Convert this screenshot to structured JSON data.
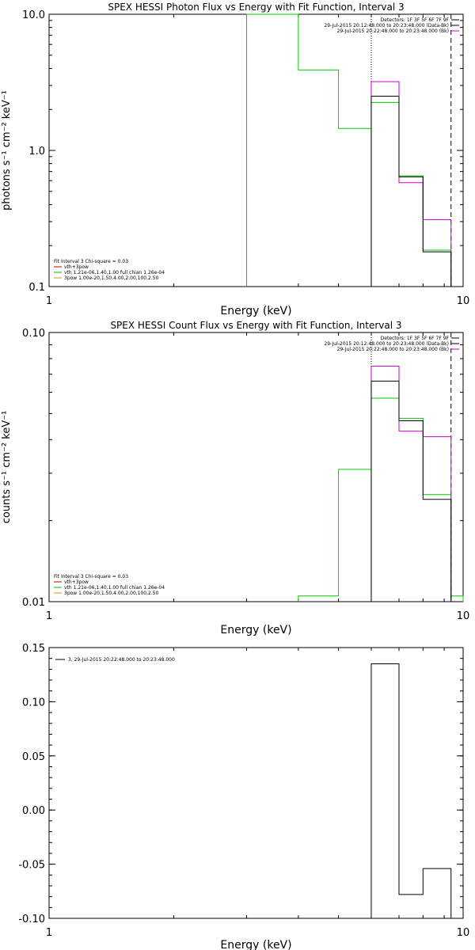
{
  "chart_data": [
    {
      "type": "line",
      "title": "SPEX HESSI Photon Flux vs Energy with Fit Function, Interval 3",
      "xlabel": "Energy (keV)",
      "ylabel": "photons s⁻¹ cm⁻² keV⁻¹",
      "xscale": "log",
      "yscale": "log",
      "xlim": [
        1,
        10
      ],
      "ylim": [
        0.1,
        10.0
      ],
      "xticks": [
        {
          "v": 1,
          "label": "1"
        },
        {
          "v": 10,
          "label": "10"
        }
      ],
      "yticks": [
        {
          "v": 0.1,
          "label": "0.1"
        },
        {
          "v": 1.0,
          "label": "1.0"
        },
        {
          "v": 10.0,
          "label": "10.0"
        }
      ],
      "info_top": [
        "Detectors: 1F 3F 5F 6F 7F 9F",
        "29-Jul-2015 20:12:48.000 to 20:23:48.000 (Data-Bk)",
        "29-Jul-2015 20:22:48.000 to 20:23:48.000 (Bk)"
      ],
      "info_top_colors": [
        "#000000",
        "#000000",
        "#c000c0"
      ],
      "info_bottom": [
        "Fit Interval 3   Chi-square = 0.03",
        "vth+3pow",
        "vth 1.21e-06,1.40,1.00  full chian 1.26e-04",
        "3pow 1.00e-20,1.50,4.00,2.00,100,2.50"
      ],
      "info_bottom_colors": [
        "#000000",
        "#c00000",
        "#00c000",
        "#c0a000"
      ],
      "vlines": [
        {
          "x": 6.0,
          "style": "dotted"
        },
        {
          "x": 9.35,
          "style": "dashed"
        }
      ],
      "series": [
        {
          "color": "#00cc00",
          "edges": [
            3.0,
            4.0,
            5.0,
            6.0,
            7.0,
            8.0,
            9.35
          ],
          "values": [
            10.0,
            3.9,
            1.45,
            2.25,
            0.65,
            0.185
          ]
        },
        {
          "color": "#cc00cc",
          "edges": [
            6.0,
            7.0,
            8.0,
            9.35
          ],
          "values": [
            3.2,
            0.58,
            0.31
          ]
        },
        {
          "color": "#000000",
          "edges": [
            6.0,
            7.0,
            8.0,
            9.35
          ],
          "values": [
            2.5,
            0.64,
            0.18
          ]
        }
      ]
    },
    {
      "type": "line",
      "title": "SPEX HESSI Count Flux vs Energy with Fit Function, Interval 3",
      "xlabel": "Energy (keV)",
      "ylabel": "counts s⁻¹ cm⁻² keV⁻¹",
      "xscale": "log",
      "yscale": "log",
      "xlim": [
        1,
        10
      ],
      "ylim": [
        0.01,
        0.1
      ],
      "xticks": [
        {
          "v": 1,
          "label": "1"
        },
        {
          "v": 10,
          "label": "10"
        }
      ],
      "yticks": [
        {
          "v": 0.01,
          "label": "0.01"
        },
        {
          "v": 0.1,
          "label": "0.10"
        }
      ],
      "info_top": [
        "Detectors: 1F 3F 5F 6F 7F 9F",
        "29-Jul-2015 20:12:48.000 to 20:23:48.000 (Data-Bk)",
        "29-Jul-2015 20:22:48.000 to 20:23:48.000 (Bk)"
      ],
      "info_top_colors": [
        "#000000",
        "#000000",
        "#c000c0"
      ],
      "info_bottom": [
        "Fit Interval 3   Chi-square = 0.03",
        "vth+3pow",
        "vth 1.21e-06,1.40,1.00  full chian 1.26e-04",
        "3pow 1.00e-20,1.50,4.00,2.00,100,2.50"
      ],
      "info_bottom_colors": [
        "#000000",
        "#c00000",
        "#00c000",
        "#c0a000"
      ],
      "vlines": [
        {
          "x": 6.0,
          "style": "dotted"
        },
        {
          "x": 9.35,
          "style": "dashed"
        }
      ],
      "series": [
        {
          "color": "#00cc00",
          "edges": [
            4.0,
            5.0,
            6.0,
            7.0,
            8.0,
            9.35,
            10.0
          ],
          "values": [
            0.0105,
            0.031,
            0.057,
            0.048,
            0.025,
            0.0105
          ]
        },
        {
          "color": "#cc00cc",
          "edges": [
            6.0,
            7.0,
            8.0,
            9.35
          ],
          "values": [
            0.075,
            0.043,
            0.041
          ]
        },
        {
          "color": "#000000",
          "edges": [
            6.0,
            7.0,
            8.0,
            9.35
          ],
          "values": [
            0.066,
            0.047,
            0.024
          ]
        }
      ]
    },
    {
      "type": "line",
      "title": "",
      "xlabel": "Energy (keV)",
      "ylabel": "",
      "xscale": "log",
      "yscale": "linear",
      "xlim": [
        1,
        10
      ],
      "ylim": [
        -0.1,
        0.15
      ],
      "xticks": [
        {
          "v": 1,
          "label": "1"
        },
        {
          "v": 10,
          "label": "10"
        }
      ],
      "yticks": [
        {
          "v": 0.15,
          "label": "0.15"
        },
        {
          "v": 0.1,
          "label": "0.10"
        },
        {
          "v": 0.05,
          "label": "0.05"
        },
        {
          "v": 0.0,
          "label": "0.00"
        },
        {
          "v": -0.05,
          "label": "-0.05"
        },
        {
          "v": -0.1,
          "label": "-0.10"
        }
      ],
      "legend": "3, 29-Jul-2015 20:22:48.000 to 20:23:48.000",
      "series": [
        {
          "color": "#000000",
          "edges": [
            6.0,
            7.0,
            8.0,
            9.35
          ],
          "values": [
            0.135,
            -0.078,
            -0.054
          ],
          "base": -0.1
        }
      ]
    }
  ]
}
